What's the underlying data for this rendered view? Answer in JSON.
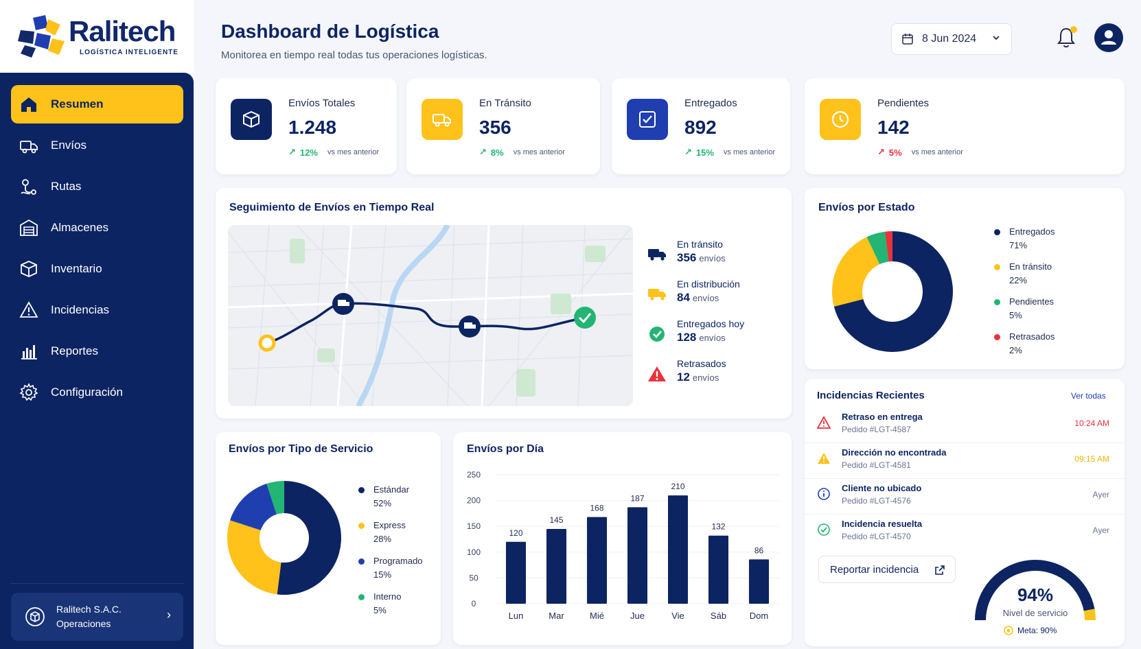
{
  "brand": {
    "name": "Ralitech",
    "tagline": "LOGÍSTICA INTELIGENTE"
  },
  "colors": {
    "navy": "#0d2463",
    "yellow": "#ffc21a",
    "blue": "#1f3fb0",
    "green": "#22b573",
    "red": "#e8323c"
  },
  "sidebar": {
    "items": [
      {
        "label": "Resumen",
        "icon": "home-icon",
        "active": true
      },
      {
        "label": "Envíos",
        "icon": "truck-icon"
      },
      {
        "label": "Rutas",
        "icon": "route-icon"
      },
      {
        "label": "Almacenes",
        "icon": "warehouse-icon"
      },
      {
        "label": "Inventario",
        "icon": "box-icon"
      },
      {
        "label": "Incidencias",
        "icon": "warning-icon"
      },
      {
        "label": "Reportes",
        "icon": "bar-chart-icon"
      },
      {
        "label": "Configuración",
        "icon": "gear-icon"
      }
    ],
    "company": {
      "name": "Ralitech S.A.C.",
      "role": "Operaciones"
    }
  },
  "header": {
    "title": "Dashboard de Logística",
    "subtitle": "Monitorea en tiempo real todas tus operaciones logísticas.",
    "date": "8 Jun 2024"
  },
  "kpis": [
    {
      "label": "Envíos Totales",
      "value": "1.248",
      "delta": "12%",
      "direction": "up",
      "compare": "vs mes anterior",
      "icon": "box-icon"
    },
    {
      "label": "En Tránsito",
      "value": "356",
      "delta": "8%",
      "direction": "up",
      "compare": "vs mes anterior",
      "icon": "truck-icon"
    },
    {
      "label": "Entregados",
      "value": "892",
      "delta": "15%",
      "direction": "up",
      "compare": "vs mes anterior",
      "icon": "check-square-icon"
    },
    {
      "label": "Pendientes",
      "value": "142",
      "delta": "5%",
      "direction": "up-bad",
      "compare": "vs mes anterior",
      "icon": "clock-icon"
    }
  ],
  "tracking": {
    "title": "Seguimiento de Envíos en Tiempo Real",
    "legend": [
      {
        "title": "En tránsito",
        "value": "356",
        "unit": "envíos",
        "icon": "truck-icon"
      },
      {
        "title": "En distribución",
        "value": "84",
        "unit": "envíos",
        "icon": "delivery-truck-icon"
      },
      {
        "title": "Entregados hoy",
        "value": "128",
        "unit": "envíos",
        "icon": "check-circle-icon"
      },
      {
        "title": "Retrasados",
        "value": "12",
        "unit": "envíos",
        "icon": "alert-triangle-icon"
      }
    ]
  },
  "status_chart": {
    "title": "Envíos por Estado",
    "items": [
      {
        "label": "Entregados",
        "pct": "71%",
        "value": 71,
        "color": "#0d2463"
      },
      {
        "label": "En tránsito",
        "pct": "22%",
        "value": 22,
        "color": "#ffc21a"
      },
      {
        "label": "Pendientes",
        "pct": "5%",
        "value": 5,
        "color": "#22b573"
      },
      {
        "label": "Retrasados",
        "pct": "2%",
        "value": 2,
        "color": "#e8323c"
      }
    ]
  },
  "service_chart": {
    "title": "Envíos por Tipo de Servicio",
    "items": [
      {
        "label": "Estándar",
        "pct": "52%",
        "value": 52,
        "color": "#0d2463"
      },
      {
        "label": "Express",
        "pct": "28%",
        "value": 28,
        "color": "#ffc21a"
      },
      {
        "label": "Programado",
        "pct": "15%",
        "value": 15,
        "color": "#1f3fb0"
      },
      {
        "label": "Interno",
        "pct": "5%",
        "value": 5,
        "color": "#22b573"
      }
    ]
  },
  "chart_data": {
    "type": "bar",
    "title": "Envíos por Día",
    "categories": [
      "Lun",
      "Mar",
      "Mié",
      "Jue",
      "Vie",
      "Sáb",
      "Dom"
    ],
    "values": [
      120,
      145,
      168,
      187,
      210,
      132,
      86
    ],
    "ylim": [
      0,
      250
    ],
    "yticks": [
      "250",
      "200",
      "150",
      "100",
      "50",
      "0"
    ],
    "color": "#0d2463"
  },
  "incidents": {
    "title": "Incidencias Recientes",
    "view_all": "Ver todas",
    "items": [
      {
        "title": "Retraso en entrega",
        "order": "Pedido #LGT-4587",
        "time": "10:24 AM",
        "icon": "alert-triangle-icon",
        "color": "#e8323c"
      },
      {
        "title": "Dirección no encontrada",
        "order": "Pedido #LGT-4581",
        "time": "09:15 AM",
        "icon": "warning-icon",
        "color": "#ffc21a"
      },
      {
        "title": "Cliente no ubicado",
        "order": "Pedido #LGT-4576",
        "time": "Ayer",
        "icon": "info-icon",
        "color": "#1f3fb0"
      },
      {
        "title": "Incidencia resuelta",
        "order": "Pedido #LGT-4570",
        "time": "Ayer",
        "icon": "check-circle-icon",
        "color": "#22b573"
      }
    ],
    "report_button": "Reportar incidencia"
  },
  "service_level": {
    "value": "94%",
    "level": 0.94,
    "label": "Nivel de servicio",
    "goal": "Meta: 90%"
  }
}
